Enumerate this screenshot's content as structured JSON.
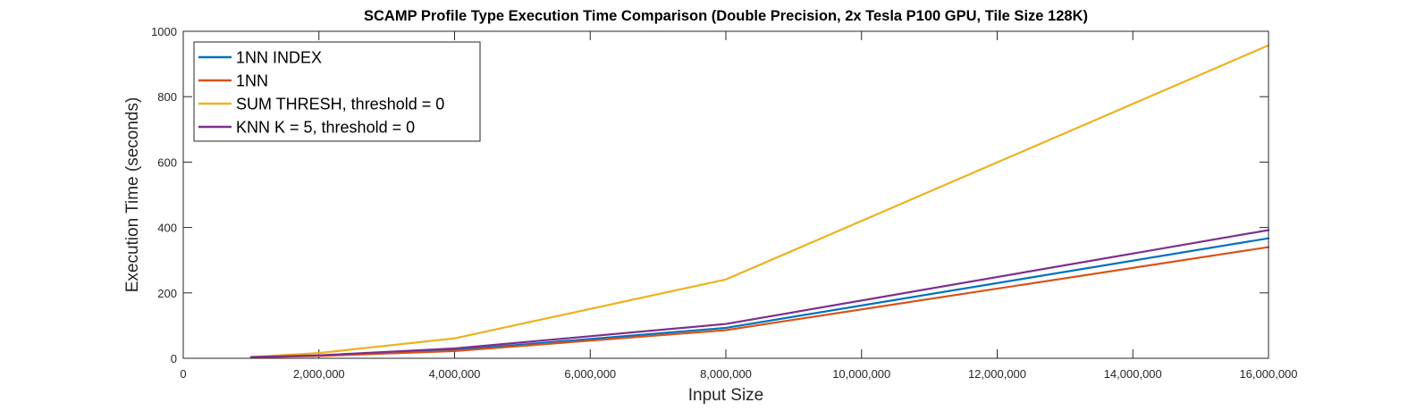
{
  "chart_data": {
    "type": "line",
    "title": "SCAMP Profile Type Execution Time Comparison (Double Precision, 2x Tesla P100 GPU, Tile Size 128K)",
    "xlabel": "Input Size",
    "ylabel": "Execution Time (seconds)",
    "xlim": [
      0,
      16000000
    ],
    "ylim": [
      0,
      1000
    ],
    "xticks": [
      0,
      2000000,
      4000000,
      6000000,
      8000000,
      10000000,
      12000000,
      14000000,
      16000000
    ],
    "xtick_labels": [
      "0",
      "2,000,000",
      "4,000,000",
      "6,000,000",
      "8,000,000",
      "10,000,000",
      "12,000,000",
      "14,000,000",
      "16,000,000"
    ],
    "yticks": [
      0,
      200,
      400,
      600,
      800,
      1000
    ],
    "ytick_labels": [
      "0",
      "200",
      "400",
      "600",
      "800",
      "1000"
    ],
    "grid": false,
    "legend_position": "top-left",
    "x": [
      1000000,
      2000000,
      4000000,
      8000000,
      16000000
    ],
    "series": [
      {
        "name": "1NN INDEX",
        "color": "#0072BD",
        "values": [
          3,
          8,
          25,
          93,
          367
        ]
      },
      {
        "name": "1NN",
        "color": "#D95319",
        "values": [
          3,
          7,
          22,
          86,
          340
        ]
      },
      {
        "name": "SUM THRESH, threshold = 0",
        "color": "#EDB120",
        "values": [
          4,
          16,
          61,
          241,
          957
        ]
      },
      {
        "name": "KNN K = 5, threshold = 0",
        "color": "#7E2F8E",
        "values": [
          4,
          9,
          30,
          105,
          392
        ]
      }
    ]
  }
}
